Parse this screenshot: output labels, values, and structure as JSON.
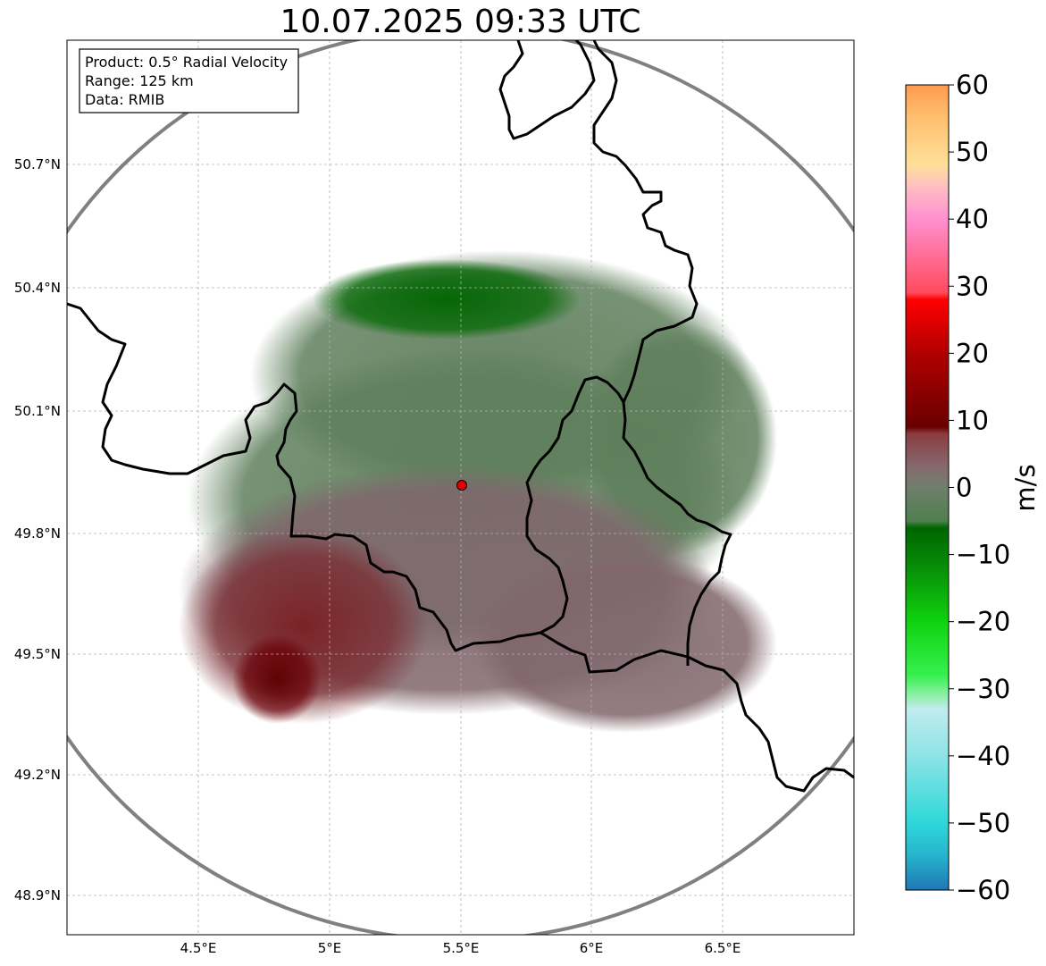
{
  "title": "10.07.2025 09:33 UTC",
  "info_box": {
    "lines": [
      "Product: 0.5° Radial Velocity",
      "Range: 125 km",
      "Data: RMIB"
    ]
  },
  "axes": {
    "x_ticks": [
      "4.5°E",
      "5°E",
      "5.5°E",
      "6°E",
      "6.5°E"
    ],
    "y_ticks": [
      "50.7°N",
      "50.4°N",
      "50.1°N",
      "49.8°N",
      "49.5°N",
      "49.2°N",
      "48.9°N"
    ],
    "lon_range": [
      4.0,
      7.0
    ],
    "lat_range": [
      48.8,
      50.98
    ]
  },
  "radar_site": {
    "lon": 5.505,
    "lat": 49.915
  },
  "colorbar": {
    "label": "m/s",
    "ticks": [
      "60",
      "50",
      "40",
      "30",
      "20",
      "10",
      "0",
      "−10",
      "−20",
      "−30",
      "−40",
      "−50",
      "−60"
    ],
    "range": [
      -60,
      60
    ],
    "stops": [
      {
        "v": -60,
        "c": "#1f77b4"
      },
      {
        "v": -55,
        "c": "#26b2cc"
      },
      {
        "v": -50,
        "c": "#2ed8d8"
      },
      {
        "v": -40,
        "c": "#8de3e6"
      },
      {
        "v": -33,
        "c": "#c0ecee"
      },
      {
        "v": -31,
        "c": "#8ef0a6"
      },
      {
        "v": -28,
        "c": "#37f050"
      },
      {
        "v": -20,
        "c": "#0fd20f"
      },
      {
        "v": -12,
        "c": "#078f07"
      },
      {
        "v": -6,
        "c": "#006400"
      },
      {
        "v": -5,
        "c": "#4f7f4f"
      },
      {
        "v": 0,
        "c": "#6f7f6c"
      },
      {
        "v": 3,
        "c": "#866a70"
      },
      {
        "v": 8,
        "c": "#8a3c40"
      },
      {
        "v": 9,
        "c": "#6a0000"
      },
      {
        "v": 20,
        "c": "#b00000"
      },
      {
        "v": 28,
        "c": "#ff0000"
      },
      {
        "v": 29,
        "c": "#ff4a5c"
      },
      {
        "v": 40,
        "c": "#ff90d0"
      },
      {
        "v": 45,
        "c": "#ffc0c0"
      },
      {
        "v": 48,
        "c": "#ffe09a"
      },
      {
        "v": 55,
        "c": "#ffc070"
      },
      {
        "v": 60,
        "c": "#ff9a50"
      }
    ]
  },
  "colors": {
    "range_ring": "#808080",
    "borders": "#000000",
    "grid": "#b0b0b0",
    "radar_marker": "#e00000"
  }
}
